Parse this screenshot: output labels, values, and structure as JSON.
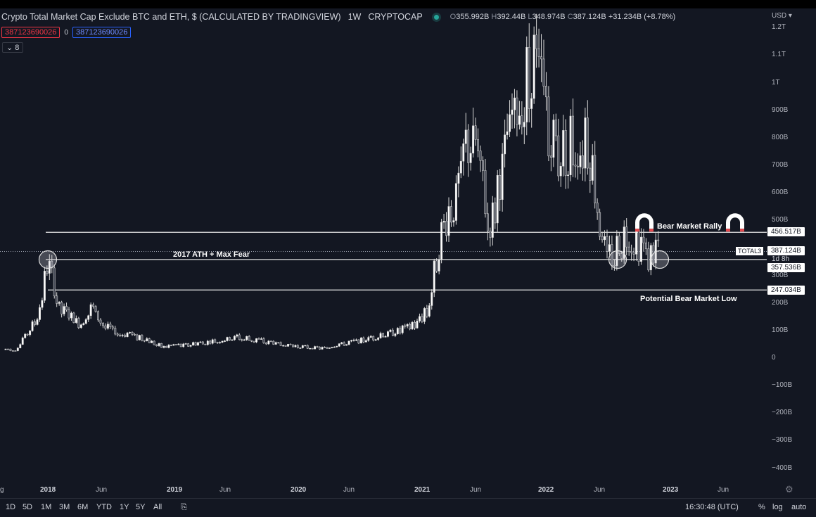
{
  "header": {
    "title": "Crypto Total Market Cap Exclude BTC and ETH, $ (CALCULATED BY TRADINGVIEW)",
    "interval": "1W",
    "exchange": "CRYPTOCAP",
    "ohlc": {
      "o_label": "O",
      "o": "355.992B",
      "h_label": "H",
      "h": "392.44B",
      "l_label": "L",
      "l": "348.974B",
      "c_label": "C",
      "c": "387.124B",
      "change": "+31.234B (+8.78%)"
    }
  },
  "indicators": {
    "value_red": "387123690026",
    "zero": "0",
    "value_blue": "387123690026",
    "collapsed_count": "8"
  },
  "price_axis": {
    "currency": "USD",
    "ticks": [
      "1.2T",
      "1.1T",
      "1T",
      "900B",
      "800B",
      "700B",
      "600B",
      "500B",
      "300B",
      "200B",
      "100B",
      "0",
      "−100B",
      "−200B",
      "−300B",
      "−400B"
    ],
    "tags": {
      "rally_line": "456.517B",
      "last_price": "387.124B",
      "countdown": "1d 8h",
      "ath_line": "357.536B",
      "low_line": "247.034B",
      "symbol": "TOTAL3"
    }
  },
  "time_axis": {
    "labels": [
      {
        "t": "g",
        "year": false
      },
      {
        "t": "2018",
        "year": true
      },
      {
        "t": "Jun",
        "year": false
      },
      {
        "t": "2019",
        "year": true
      },
      {
        "t": "Jun",
        "year": false
      },
      {
        "t": "2020",
        "year": true
      },
      {
        "t": "Jun",
        "year": false
      },
      {
        "t": "2021",
        "year": true
      },
      {
        "t": "Jun",
        "year": false
      },
      {
        "t": "2022",
        "year": true
      },
      {
        "t": "Jun",
        "year": false
      },
      {
        "t": "2023",
        "year": true
      },
      {
        "t": "Jun",
        "year": false
      }
    ]
  },
  "annotations": {
    "rally": "Bear Market Rally",
    "ath": "2017 ATH + Max Fear",
    "low": "Potential Bear Market Low"
  },
  "bottom_bar": {
    "timeframes": [
      "1D",
      "5D",
      "1M",
      "3M",
      "6M",
      "YTD",
      "1Y",
      "5Y",
      "All"
    ],
    "clock": "16:30:48 (UTC)",
    "percent": "%",
    "log": "log",
    "auto": "auto"
  },
  "chart_data": {
    "type": "candlestick",
    "symbol": "TOTAL3",
    "interval": "1W",
    "ylim": [
      -400,
      1200
    ],
    "y_unit": "B USD",
    "x_range": [
      "2017-09",
      "2023-08"
    ],
    "horizontal_lines": [
      456.517,
      357.536,
      247.034
    ],
    "series_close_approx": [
      {
        "date": "2017-10",
        "value": 30
      },
      {
        "date": "2017-12",
        "value": 150
      },
      {
        "date": "2018-01",
        "value": 350
      },
      {
        "date": "2018-02",
        "value": 190
      },
      {
        "date": "2018-04",
        "value": 120
      },
      {
        "date": "2018-05",
        "value": 180
      },
      {
        "date": "2018-07",
        "value": 100
      },
      {
        "date": "2018-10",
        "value": 70
      },
      {
        "date": "2018-12",
        "value": 40
      },
      {
        "date": "2019-04",
        "value": 55
      },
      {
        "date": "2019-07",
        "value": 75
      },
      {
        "date": "2019-12",
        "value": 45
      },
      {
        "date": "2020-03",
        "value": 35
      },
      {
        "date": "2020-08",
        "value": 75
      },
      {
        "date": "2020-12",
        "value": 120
      },
      {
        "date": "2021-01",
        "value": 180
      },
      {
        "date": "2021-02",
        "value": 400
      },
      {
        "date": "2021-04",
        "value": 620
      },
      {
        "date": "2021-05",
        "value": 820
      },
      {
        "date": "2021-07",
        "value": 470
      },
      {
        "date": "2021-09",
        "value": 850
      },
      {
        "date": "2021-11",
        "value": 1100
      },
      {
        "date": "2022-01",
        "value": 750
      },
      {
        "date": "2022-04",
        "value": 800
      },
      {
        "date": "2022-06",
        "value": 360
      },
      {
        "date": "2022-08",
        "value": 440
      },
      {
        "date": "2022-10",
        "value": 360
      },
      {
        "date": "2022-11",
        "value": 387
      }
    ]
  }
}
